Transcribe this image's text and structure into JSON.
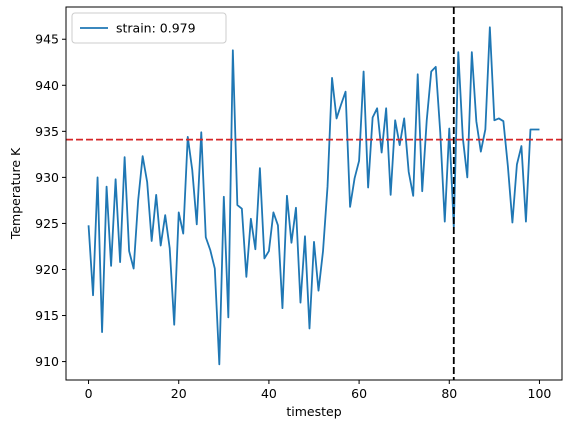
{
  "chart_data": {
    "type": "line",
    "xlabel": "timestep",
    "ylabel": "Temperature K",
    "xlim": [
      -5,
      105
    ],
    "ylim": [
      908,
      948.5
    ],
    "xticks": [
      0,
      20,
      40,
      60,
      80,
      100
    ],
    "yticks": [
      910,
      915,
      920,
      925,
      930,
      935,
      940,
      945
    ],
    "grid": false,
    "legend_position": "top-left",
    "series": [
      {
        "name": "strain: 0.979",
        "color": "#1f77b4",
        "x": [
          0,
          1,
          2,
          3,
          4,
          5,
          6,
          7,
          8,
          9,
          10,
          11,
          12,
          13,
          14,
          15,
          16,
          17,
          18,
          19,
          20,
          21,
          22,
          23,
          24,
          25,
          26,
          27,
          28,
          29,
          30,
          31,
          32,
          33,
          34,
          35,
          36,
          37,
          38,
          39,
          40,
          41,
          42,
          43,
          44,
          45,
          46,
          47,
          48,
          49,
          50,
          51,
          52,
          53,
          54,
          55,
          56,
          57,
          58,
          59,
          60,
          61,
          62,
          63,
          64,
          65,
          66,
          67,
          68,
          69,
          70,
          71,
          72,
          73,
          74,
          75,
          76,
          77,
          78,
          79,
          80,
          81,
          82,
          83,
          84,
          85,
          86,
          87,
          88,
          89,
          90,
          91,
          92,
          93,
          94,
          95,
          96,
          97,
          98,
          99,
          100
        ],
        "y": [
          924.8,
          917.2,
          930.0,
          913.2,
          929.0,
          920.4,
          929.8,
          920.8,
          932.2,
          922.0,
          920.1,
          927.5,
          932.3,
          929.5,
          923.1,
          928.1,
          922.6,
          925.9,
          922.3,
          914.0,
          926.2,
          923.9,
          934.4,
          930.8,
          924.9,
          934.9,
          923.5,
          922.1,
          920.1,
          909.7,
          927.9,
          914.8,
          943.8,
          927.0,
          926.6,
          919.2,
          925.5,
          922.2,
          931.0,
          921.2,
          922.0,
          926.2,
          924.8,
          915.8,
          928.0,
          922.9,
          926.7,
          916.4,
          923.6,
          913.6,
          923.0,
          917.7,
          922.0,
          929.0,
          940.8,
          936.4,
          937.9,
          939.3,
          926.8,
          929.9,
          931.8,
          941.5,
          928.9,
          936.5,
          937.5,
          932.7,
          937.5,
          928.1,
          936.2,
          933.5,
          936.4,
          930.6,
          928.0,
          941.2,
          928.5,
          936.2,
          941.5,
          942.0,
          934.9,
          925.2,
          935.3,
          924.6,
          943.6,
          934.3,
          930.0,
          943.6,
          936.1,
          932.8,
          935.2,
          946.3,
          936.2,
          936.4,
          936.1,
          931.2,
          925.1,
          931.4,
          933.4,
          925.2,
          935.2,
          935.2,
          935.2
        ]
      }
    ],
    "reference_lines": [
      {
        "orientation": "horizontal",
        "value": 934.1,
        "color": "#d62728",
        "style": "dashed"
      },
      {
        "orientation": "vertical",
        "value": 81,
        "color": "#000000",
        "style": "dashed"
      }
    ]
  }
}
